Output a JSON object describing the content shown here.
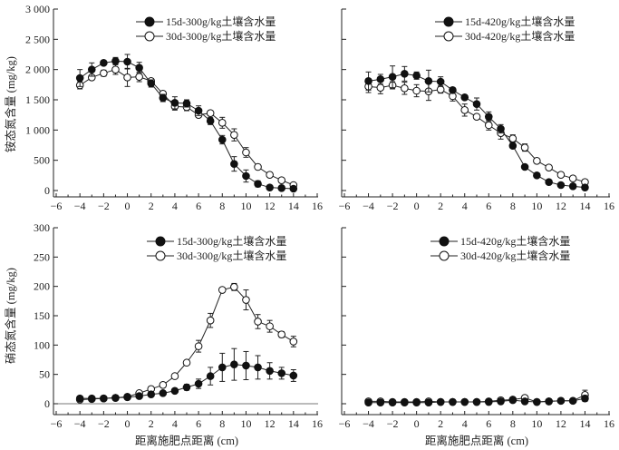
{
  "chart_data": [
    {
      "type": "line",
      "panel": "top-left",
      "title": "",
      "xlabel": "",
      "ylabel": "铵态氮含量 (mg/kg)",
      "xlim": [
        -6,
        16
      ],
      "ylim": [
        0,
        3000
      ],
      "xticks": [
        -6,
        -4,
        -2,
        0,
        2,
        4,
        6,
        8,
        10,
        12,
        14,
        16
      ],
      "xtick_labels": [
        "−6",
        "−4",
        "−2",
        "0",
        "2",
        "4",
        "6",
        "8",
        "10",
        "12",
        "14",
        "16"
      ],
      "yticks": [
        0,
        500,
        1000,
        1500,
        2000,
        2500,
        3000
      ],
      "ytick_labels": [
        "0",
        "500",
        "1 000",
        "1 500",
        "2 000",
        "2 500",
        "3 000"
      ],
      "grid": false,
      "legend_position": "top-right",
      "x": [
        -4,
        -3,
        -2,
        -1,
        0,
        1,
        2,
        3,
        4,
        5,
        6,
        7,
        8,
        9,
        10,
        11,
        12,
        13,
        14
      ],
      "series": [
        {
          "name": "15d-300g/kg土壤含水量",
          "marker": "filled-circle",
          "values": [
            1860,
            2000,
            2110,
            2140,
            2130,
            2030,
            1770,
            1530,
            1450,
            1440,
            1320,
            1150,
            840,
            440,
            240,
            110,
            50,
            40,
            30
          ],
          "errors": [
            140,
            110,
            30,
            60,
            120,
            90,
            60,
            60,
            100,
            60,
            80,
            60,
            70,
            120,
            100,
            50,
            20,
            20,
            20
          ]
        },
        {
          "name": "30d-300g/kg土壤含水量",
          "marker": "open-circle",
          "values": [
            1740,
            1870,
            1940,
            2000,
            1870,
            1880,
            1810,
            1600,
            1390,
            1380,
            1250,
            1280,
            1120,
            920,
            630,
            390,
            260,
            170,
            90
          ],
          "errors": [
            60,
            40,
            50,
            80,
            150,
            80,
            40,
            40,
            60,
            60,
            40,
            40,
            90,
            100,
            80,
            40,
            20,
            20,
            20
          ]
        }
      ]
    },
    {
      "type": "line",
      "panel": "top-right",
      "title": "",
      "xlabel": "",
      "ylabel": "",
      "xlim": [
        -6,
        16
      ],
      "ylim": [
        0,
        3000
      ],
      "xticks": [
        -6,
        -4,
        -2,
        0,
        2,
        4,
        6,
        8,
        10,
        12,
        14,
        16
      ],
      "xtick_labels": [
        "−6",
        "−4",
        "−2",
        "0",
        "2",
        "4",
        "6",
        "8",
        "10",
        "12",
        "14",
        "16"
      ],
      "yticks": [
        0,
        500,
        1000,
        1500,
        2000,
        2500,
        3000
      ],
      "grid": false,
      "legend_position": "top-right",
      "x": [
        -4,
        -3,
        -2,
        -1,
        0,
        1,
        2,
        3,
        4,
        5,
        6,
        7,
        8,
        9,
        10,
        11,
        12,
        13,
        14
      ],
      "series": [
        {
          "name": "15d-420g/kg土壤含水量",
          "marker": "filled-circle",
          "values": [
            1810,
            1840,
            1880,
            1930,
            1900,
            1810,
            1800,
            1660,
            1540,
            1430,
            1220,
            1020,
            740,
            390,
            250,
            140,
            90,
            70,
            50
          ],
          "errors": [
            150,
            80,
            180,
            120,
            60,
            180,
            80,
            40,
            30,
            100,
            80,
            70,
            40,
            30,
            30,
            30,
            20,
            20,
            20
          ]
        },
        {
          "name": "30d-420g/kg土壤含水量",
          "marker": "open-circle",
          "values": [
            1720,
            1700,
            1740,
            1690,
            1650,
            1640,
            1670,
            1560,
            1330,
            1220,
            1080,
            950,
            860,
            710,
            490,
            380,
            260,
            200,
            140
          ],
          "errors": [
            100,
            100,
            60,
            100,
            100,
            150,
            60,
            80,
            100,
            30,
            80,
            100,
            60,
            60,
            30,
            30,
            20,
            20,
            20
          ]
        }
      ]
    },
    {
      "type": "line",
      "panel": "bottom-left",
      "title": "",
      "xlabel": "距离施肥点距离 (cm)",
      "ylabel": "硝态氮含量 (mg/kg)",
      "xlim": [
        -6,
        16
      ],
      "ylim": [
        0,
        300
      ],
      "xticks": [
        -6,
        -4,
        -2,
        0,
        2,
        4,
        6,
        8,
        10,
        12,
        14,
        16
      ],
      "xtick_labels": [
        "−6",
        "−4",
        "−2",
        "0",
        "2",
        "4",
        "6",
        "8",
        "10",
        "12",
        "14",
        "16"
      ],
      "yticks": [
        0,
        50,
        100,
        150,
        200,
        250,
        300
      ],
      "ytick_labels": [
        "0",
        "50",
        "100",
        "150",
        "200",
        "250",
        "300"
      ],
      "grid": false,
      "legend_position": "top-right",
      "x": [
        -4,
        -3,
        -2,
        -1,
        0,
        1,
        2,
        3,
        4,
        5,
        6,
        7,
        8,
        9,
        10,
        11,
        12,
        13,
        14
      ],
      "series": [
        {
          "name": "15d-300g/kg土壤含水量",
          "marker": "filled-circle",
          "values": [
            9,
            9,
            9,
            10,
            11,
            13,
            16,
            18,
            22,
            28,
            34,
            47,
            62,
            67,
            65,
            62,
            56,
            52,
            48
          ],
          "errors": [
            3,
            3,
            2,
            2,
            2,
            3,
            3,
            3,
            3,
            5,
            8,
            15,
            24,
            27,
            24,
            20,
            14,
            10,
            10
          ]
        },
        {
          "name": "30d-300g/kg土壤含水量",
          "marker": "open-circle",
          "values": [
            7,
            8,
            9,
            10,
            12,
            18,
            25,
            32,
            47,
            70,
            98,
            142,
            194,
            199,
            177,
            140,
            132,
            118,
            106
          ],
          "errors": [
            3,
            3,
            2,
            2,
            2,
            3,
            3,
            3,
            3,
            3,
            10,
            12,
            3,
            6,
            17,
            12,
            10,
            5,
            9
          ]
        }
      ]
    },
    {
      "type": "line",
      "panel": "bottom-right",
      "title": "",
      "xlabel": "距离施肥点距离 (cm)",
      "ylabel": "",
      "xlim": [
        -6,
        16
      ],
      "ylim": [
        0,
        300
      ],
      "xticks": [
        -6,
        -4,
        -2,
        0,
        2,
        4,
        6,
        8,
        10,
        12,
        14,
        16
      ],
      "xtick_labels": [
        "−6",
        "−4",
        "−2",
        "0",
        "2",
        "4",
        "6",
        "8",
        "10",
        "12",
        "14",
        "16"
      ],
      "yticks": [
        0,
        50,
        100,
        150,
        200,
        250,
        300
      ],
      "grid": false,
      "legend_position": "top-right",
      "x": [
        -4,
        -3,
        -2,
        -1,
        0,
        1,
        2,
        3,
        4,
        5,
        6,
        7,
        8,
        9,
        10,
        11,
        12,
        13,
        14
      ],
      "series": [
        {
          "name": "15d-420g/kg土壤含水量",
          "marker": "filled-circle",
          "values": [
            2,
            2,
            2,
            2,
            2,
            2,
            3,
            3,
            3,
            3,
            3,
            4,
            6,
            4,
            3,
            4,
            5,
            5,
            9
          ],
          "errors": [
            1,
            1,
            1,
            1,
            1,
            1,
            1,
            1,
            1,
            1,
            1,
            1,
            1,
            1,
            1,
            1,
            1,
            1,
            5
          ]
        },
        {
          "name": "30d-420g/kg土壤含水量",
          "marker": "open-circle",
          "values": [
            4,
            4,
            3,
            3,
            3,
            4,
            3,
            3,
            3,
            3,
            4,
            6,
            7,
            10,
            3,
            4,
            5,
            5,
            15
          ],
          "errors": [
            1,
            1,
            1,
            1,
            1,
            1,
            1,
            1,
            1,
            1,
            1,
            1,
            1,
            2,
            1,
            1,
            1,
            1,
            8
          ]
        }
      ]
    }
  ]
}
